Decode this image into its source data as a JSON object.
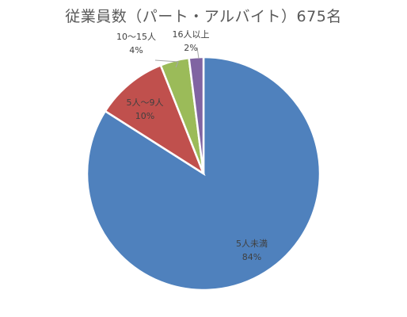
{
  "chart_data": {
    "type": "pie",
    "title": "従業員数（パート・アルバイト）675名",
    "start_angle_deg": 0,
    "direction": "clockwise",
    "slices": [
      {
        "name": "5人未満",
        "value": 84,
        "label": "84%",
        "color": "#4f81bd"
      },
      {
        "name": "5人～9人",
        "value": 10,
        "label": "10%",
        "color": "#c0504d"
      },
      {
        "name": "10～15人",
        "value": 4,
        "label": "4%",
        "color": "#9bbb59"
      },
      {
        "name": "16人以上",
        "value": 2,
        "label": "2%",
        "color": "#8064a2"
      }
    ],
    "legend": "none"
  }
}
